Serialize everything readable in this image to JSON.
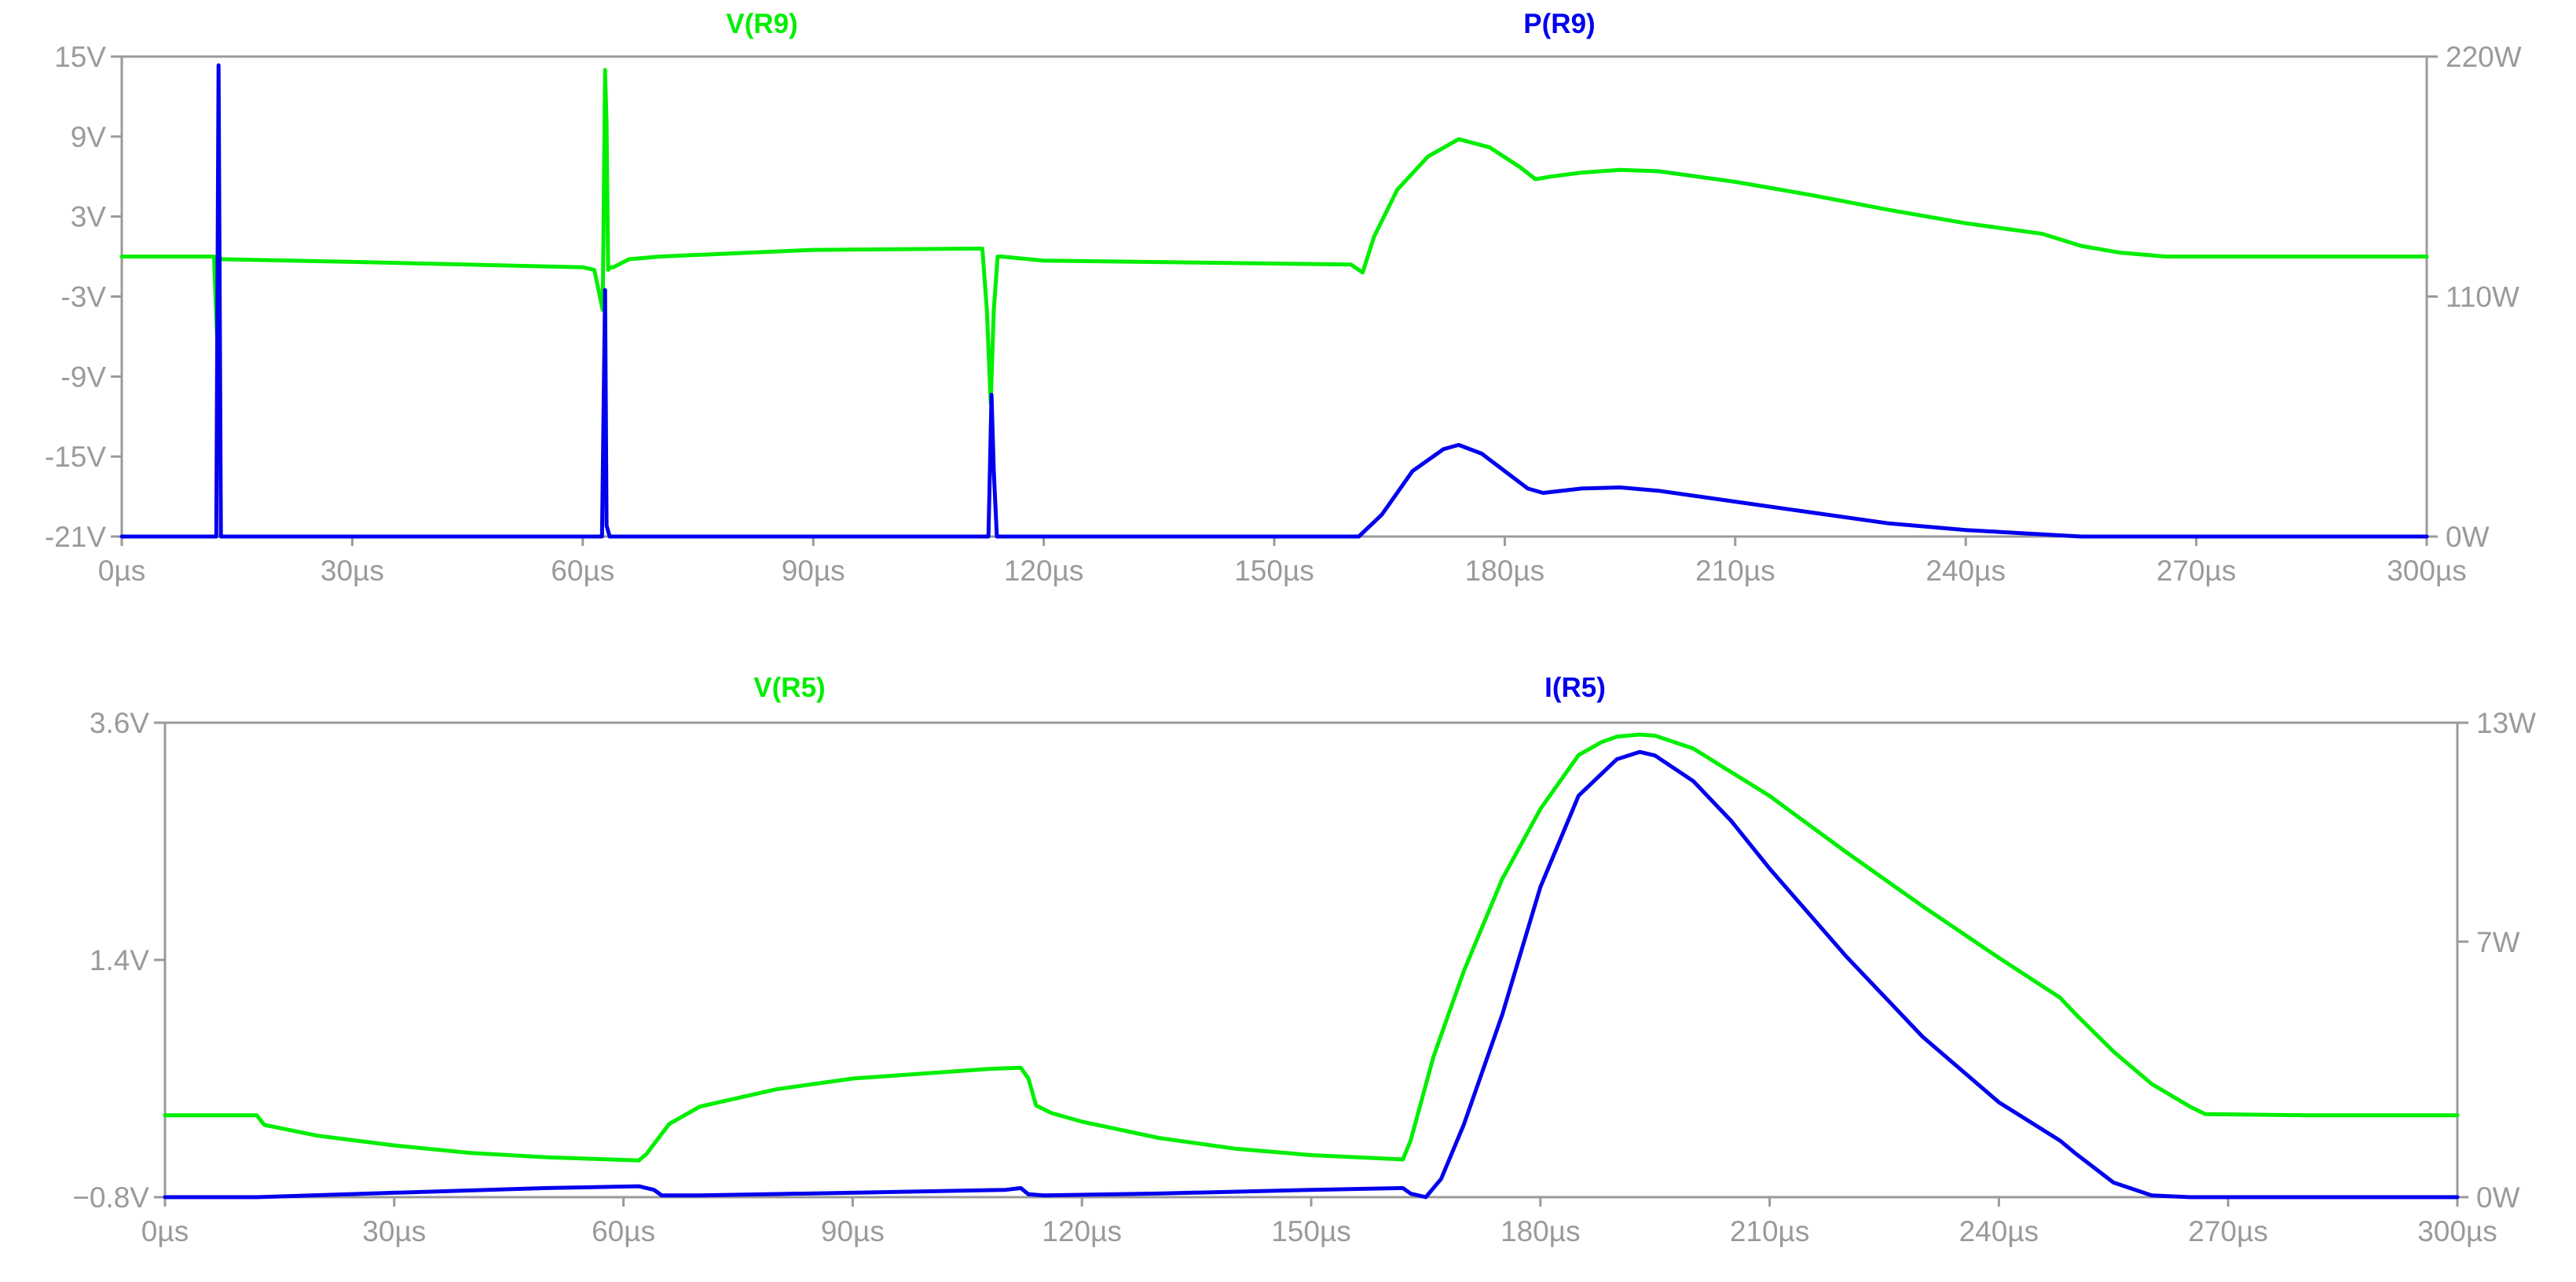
{
  "colors": {
    "green": "#00ee00",
    "blue": "#0000ee",
    "axis": "#9a9a9a",
    "background": "#ffffff"
  },
  "chart_data": [
    {
      "type": "line",
      "x_unit": "µs",
      "xlim": [
        0,
        300
      ],
      "x_ticks": [
        "0µs",
        "30µs",
        "60µs",
        "90µs",
        "120µs",
        "150µs",
        "180µs",
        "210µs",
        "240µs",
        "270µs",
        "300µs"
      ],
      "ylim_left": [
        -21,
        15
      ],
      "left_ticks": [
        {
          "value": 15,
          "label": "15V"
        },
        {
          "value": 9,
          "label": "9V"
        },
        {
          "value": 3,
          "label": "3V"
        },
        {
          "value": -3,
          "label": "-3V"
        },
        {
          "value": -9,
          "label": "-9V"
        },
        {
          "value": -15,
          "label": "-15V"
        },
        {
          "value": -21,
          "label": "-21V"
        }
      ],
      "ylim_right": [
        0,
        220
      ],
      "right_ticks": [
        {
          "value": 220,
          "label": "220W"
        },
        {
          "value": 110,
          "label": "110W"
        },
        {
          "value": 0,
          "label": "0W"
        }
      ],
      "series": [
        {
          "name": "V(R9)",
          "color": "#00ee00",
          "axis": "left",
          "x": [
            0,
            12,
            12.4,
            12.6,
            13,
            30,
            60,
            61.5,
            62.6,
            62.9,
            63.1,
            63.3,
            63.6,
            64,
            66,
            70,
            90,
            112,
            112.6,
            113.1,
            113.5,
            114,
            114.5,
            120,
            160,
            161.5,
            163,
            166,
            170,
            174,
            178,
            182,
            184,
            186,
            190,
            195,
            200,
            210,
            220,
            230,
            240,
            250,
            255,
            260,
            266,
            280,
            300
          ],
          "y": [
            0,
            0,
            -6,
            0,
            -0.2,
            -0.4,
            -0.8,
            -1,
            -4,
            14,
            10,
            -1,
            -0.8,
            -0.8,
            -0.2,
            0,
            0.5,
            0.6,
            -4,
            -11,
            -4,
            0,
            0,
            -0.3,
            -0.6,
            -1.2,
            1.5,
            5,
            7.5,
            8.8,
            8.2,
            6.7,
            5.8,
            6,
            6.3,
            6.5,
            6.4,
            5.6,
            4.6,
            3.5,
            2.5,
            1.7,
            0.8,
            0.3,
            0,
            0,
            0
          ]
        },
        {
          "name": "P(R9)",
          "color": "#0000ee",
          "axis": "right",
          "x": [
            0,
            12.3,
            12.6,
            12.9,
            30,
            62.5,
            62.9,
            63.1,
            63.5,
            90,
            112.8,
            113.2,
            113.5,
            113.9,
            130,
            161,
            164,
            168,
            172,
            174,
            177,
            180,
            183,
            185,
            190,
            195,
            200,
            210,
            220,
            230,
            240,
            250,
            255,
            260,
            300
          ],
          "y": [
            0,
            0,
            216,
            0,
            0,
            0,
            113,
            5,
            0,
            0,
            0,
            65,
            30,
            0,
            0,
            0,
            10,
            30,
            40,
            42,
            38,
            30,
            22,
            20,
            22,
            22.5,
            21,
            16,
            11,
            6,
            3,
            1,
            0,
            0,
            0
          ]
        }
      ],
      "title_labels": [
        "V(R9)",
        "P(R9)"
      ]
    },
    {
      "type": "line",
      "x_unit": "µs",
      "xlim": [
        0,
        300
      ],
      "x_ticks": [
        "0µs",
        "30µs",
        "60µs",
        "90µs",
        "120µs",
        "150µs",
        "180µs",
        "210µs",
        "240µs",
        "270µs",
        "300µs"
      ],
      "ylim_left": [
        -0.8,
        3.6
      ],
      "left_ticks": [
        {
          "value": 3.6,
          "label": "3.6V"
        },
        {
          "value": 1.4,
          "label": "1.4V"
        },
        {
          "value": -0.8,
          "label": "−0.8V"
        }
      ],
      "ylim_right": [
        0,
        13
      ],
      "right_ticks": [
        {
          "value": 13,
          "label": "13W"
        },
        {
          "value": 7,
          "label": "7W"
        },
        {
          "value": 0,
          "label": "0W"
        }
      ],
      "series": [
        {
          "name": "V(R5)",
          "color": "#00ee00",
          "axis": "left",
          "x": [
            0,
            12,
            13,
            20,
            30,
            40,
            50,
            62,
            63,
            66,
            70,
            80,
            90,
            100,
            108,
            112,
            113,
            114,
            116,
            120,
            130,
            140,
            150,
            162,
            163,
            166,
            170,
            175,
            180,
            185,
            188,
            190,
            193,
            195,
            200,
            210,
            220,
            230,
            240,
            248,
            250,
            255,
            260,
            265,
            267,
            280,
            300
          ],
          "y": [
            -0.04,
            -0.04,
            -0.13,
            -0.23,
            -0.32,
            -0.39,
            -0.43,
            -0.46,
            -0.4,
            -0.12,
            0.04,
            0.2,
            0.3,
            0.35,
            0.39,
            0.4,
            0.3,
            0.05,
            -0.02,
            -0.1,
            -0.25,
            -0.35,
            -0.41,
            -0.45,
            -0.28,
            0.5,
            1.3,
            2.15,
            2.8,
            3.3,
            3.42,
            3.47,
            3.49,
            3.48,
            3.36,
            2.92,
            2.4,
            1.9,
            1.42,
            1.05,
            0.9,
            0.55,
            0.25,
            0.04,
            -0.03,
            -0.04,
            -0.04
          ]
        },
        {
          "name": "I(R5)",
          "color": "#0000ee",
          "axis": "right",
          "x": [
            0,
            12,
            30,
            50,
            62,
            64,
            65,
            70,
            90,
            110,
            112,
            113,
            115,
            130,
            150,
            162,
            163,
            165,
            167,
            170,
            175,
            180,
            185,
            190,
            193,
            195,
            200,
            205,
            210,
            220,
            230,
            240,
            248,
            250,
            255,
            260,
            265,
            280,
            300
          ],
          "y": [
            0,
            0,
            0.12,
            0.25,
            0.3,
            0.2,
            0.05,
            0.05,
            0.12,
            0.2,
            0.25,
            0.08,
            0.05,
            0.1,
            0.2,
            0.25,
            0.1,
            0,
            0.5,
            2,
            5,
            8.5,
            11,
            12,
            12.2,
            12.1,
            11.4,
            10.3,
            9,
            6.6,
            4.4,
            2.6,
            1.55,
            1.2,
            0.4,
            0.05,
            0,
            0,
            0
          ]
        }
      ],
      "title_labels": [
        "V(R5)",
        "I(R5)"
      ]
    }
  ]
}
